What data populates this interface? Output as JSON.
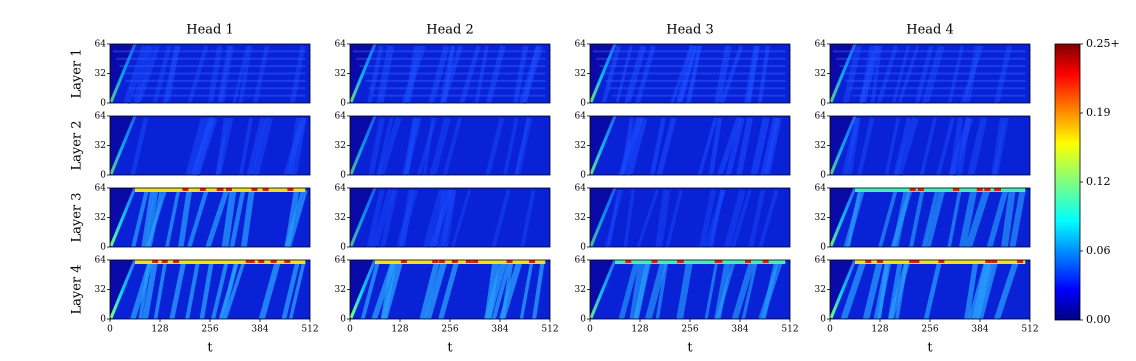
{
  "chart_data": {
    "type": "heatmap",
    "columns": [
      "Head 1",
      "Head 2",
      "Head 3",
      "Head 4"
    ],
    "rows": [
      "Layer 1",
      "Layer 2",
      "Layer 3",
      "Layer 4"
    ],
    "xlabel": "t",
    "xlim": [
      0,
      512
    ],
    "xticks": [
      0,
      128,
      256,
      384,
      512
    ],
    "ylim": [
      0,
      64
    ],
    "yticks": [
      0,
      32,
      64
    ],
    "colorbar": {
      "lim": [
        0,
        0.25
      ],
      "colormap": "jet",
      "ticks": [
        {
          "value": 0,
          "label": "0.00"
        },
        {
          "value": 0.0625,
          "label": "0.06"
        },
        {
          "value": 0.125,
          "label": "0.12"
        },
        {
          "value": 0.1875,
          "label": "0.19"
        },
        {
          "value": 0.25,
          "label": "0.25+"
        }
      ]
    }
  }
}
